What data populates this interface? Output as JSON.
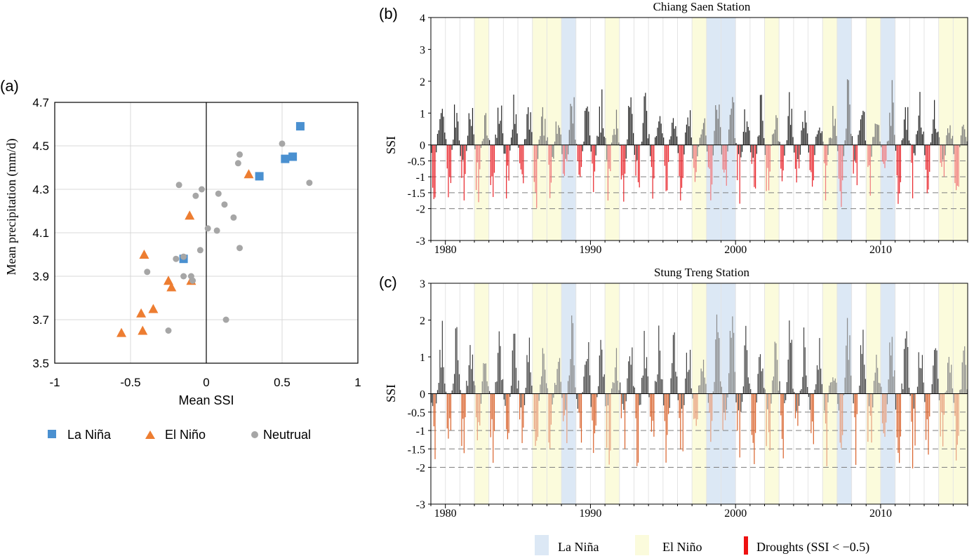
{
  "panels": {
    "a": {
      "label": "(a)"
    },
    "b": {
      "label": "(b)"
    },
    "c": {
      "label": "(c)"
    }
  },
  "legend_ssi": {
    "la_nina": "La Niña",
    "el_nino": "El Niño",
    "droughts": "Droughts (SSI < −0.5)"
  },
  "chart_data": [
    {
      "type": "scatter",
      "panel": "a",
      "title": "",
      "xlabel": "Mean SSI",
      "ylabel": "Mean precipitation (mm/d)",
      "xlim": [
        -1,
        1
      ],
      "ylim": [
        3.5,
        4.7
      ],
      "x_ticks": [
        "-1",
        "-0.5",
        "0",
        "0.5",
        "1"
      ],
      "y_ticks": [
        "3.5",
        "3.7",
        "3.9",
        "4.1",
        "4.3",
        "4.5",
        "4.7"
      ],
      "grid": "horizontal and vertical",
      "legend_position": "bottom",
      "series": [
        {
          "name": "La Niña",
          "marker": "square",
          "color": "#4a90d0",
          "points": [
            [
              0.62,
              4.59
            ],
            [
              0.57,
              4.45
            ],
            [
              0.52,
              4.44
            ],
            [
              0.35,
              4.36
            ],
            [
              -0.15,
              3.98
            ]
          ]
        },
        {
          "name": "El Niño",
          "marker": "triangle",
          "color": "#ed7d31",
          "points": [
            [
              0.28,
              4.37
            ],
            [
              -0.11,
              4.18
            ],
            [
              -0.41,
              4.0
            ],
            [
              -0.25,
              3.88
            ],
            [
              -0.23,
              3.85
            ],
            [
              -0.1,
              3.88
            ],
            [
              -0.35,
              3.75
            ],
            [
              -0.43,
              3.73
            ],
            [
              -0.42,
              3.65
            ],
            [
              -0.56,
              3.64
            ]
          ]
        },
        {
          "name": "Neutrual",
          "marker": "circle",
          "color": "#a6a6a6",
          "points": [
            [
              0.5,
              4.51
            ],
            [
              0.22,
              4.46
            ],
            [
              0.21,
              4.42
            ],
            [
              0.68,
              4.33
            ],
            [
              -0.18,
              4.32
            ],
            [
              -0.03,
              4.3
            ],
            [
              0.08,
              4.28
            ],
            [
              -0.07,
              4.27
            ],
            [
              0.12,
              4.23
            ],
            [
              0.18,
              4.17
            ],
            [
              0.01,
              4.12
            ],
            [
              0.07,
              4.11
            ],
            [
              -0.04,
              4.02
            ],
            [
              0.22,
              4.03
            ],
            [
              -0.2,
              3.98
            ],
            [
              -0.15,
              3.99
            ],
            [
              -0.39,
              3.92
            ],
            [
              -0.15,
              3.9
            ],
            [
              -0.1,
              3.9
            ],
            [
              -0.09,
              3.88
            ],
            [
              0.13,
              3.7
            ],
            [
              -0.25,
              3.65
            ]
          ]
        }
      ]
    },
    {
      "type": "bar",
      "panel": "b",
      "title": "Chiang Saen Station",
      "ylabel": "SSI",
      "ylim": [
        -3,
        4
      ],
      "y_ticks": [
        "4",
        "3",
        "2",
        "1",
        "0",
        "-0.5",
        "-1",
        "-1.5",
        "-2",
        "-3"
      ],
      "dashed_thresholds": [
        -0.5,
        -1,
        -1.5,
        -2
      ],
      "x_range_years": [
        1979,
        2016
      ],
      "x_ticks": [
        "1980",
        "1990",
        "2000",
        "2010"
      ],
      "la_nina_years": [
        1988,
        1998,
        1999,
        2007,
        2010
      ],
      "el_nino_years": [
        1982,
        1986,
        1987,
        1991,
        1997,
        2002,
        2006,
        2009,
        2014,
        2015
      ],
      "bar_colors": {
        "positive": "#222222",
        "drought": "#e8242a"
      },
      "seed": 7,
      "amp_pos": 1.3,
      "amp_neg": 1.1,
      "values": "monthly SSI 1979-2016 (approximate, estimated visually)"
    },
    {
      "type": "bar",
      "panel": "c",
      "title": "Stung Treng Station",
      "ylabel": "SSI",
      "ylim": [
        -3,
        3
      ],
      "y_ticks": [
        "3",
        "2",
        "1",
        "0",
        "-0.5",
        "-1",
        "-1.5",
        "-2",
        "-3"
      ],
      "dashed_thresholds": [
        -0.5,
        -1,
        -1.5,
        -2
      ],
      "x_range_years": [
        1979,
        2016
      ],
      "x_ticks": [
        "1980",
        "1990",
        "2000",
        "2010"
      ],
      "la_nina_years": [
        1988,
        1998,
        1999,
        2007,
        2010
      ],
      "el_nino_years": [
        1982,
        1986,
        1987,
        1991,
        1997,
        2002,
        2006,
        2009,
        2014,
        2015
      ],
      "bar_colors": {
        "positive": "#404040",
        "drought": "#d9622b"
      },
      "seed": 19,
      "amp_pos": 1.5,
      "amp_neg": 1.2,
      "values": "monthly SSI 1979-2016 (approximate, estimated visually)"
    }
  ],
  "colors": {
    "la_nina_band": "#dce8f5",
    "el_nino_band": "#fbfbdc",
    "la_nina_marker": "#4a90d0",
    "el_nino_marker": "#ed7d31",
    "neutral_marker": "#a6a6a6",
    "drought_legend": "#ee1111"
  }
}
